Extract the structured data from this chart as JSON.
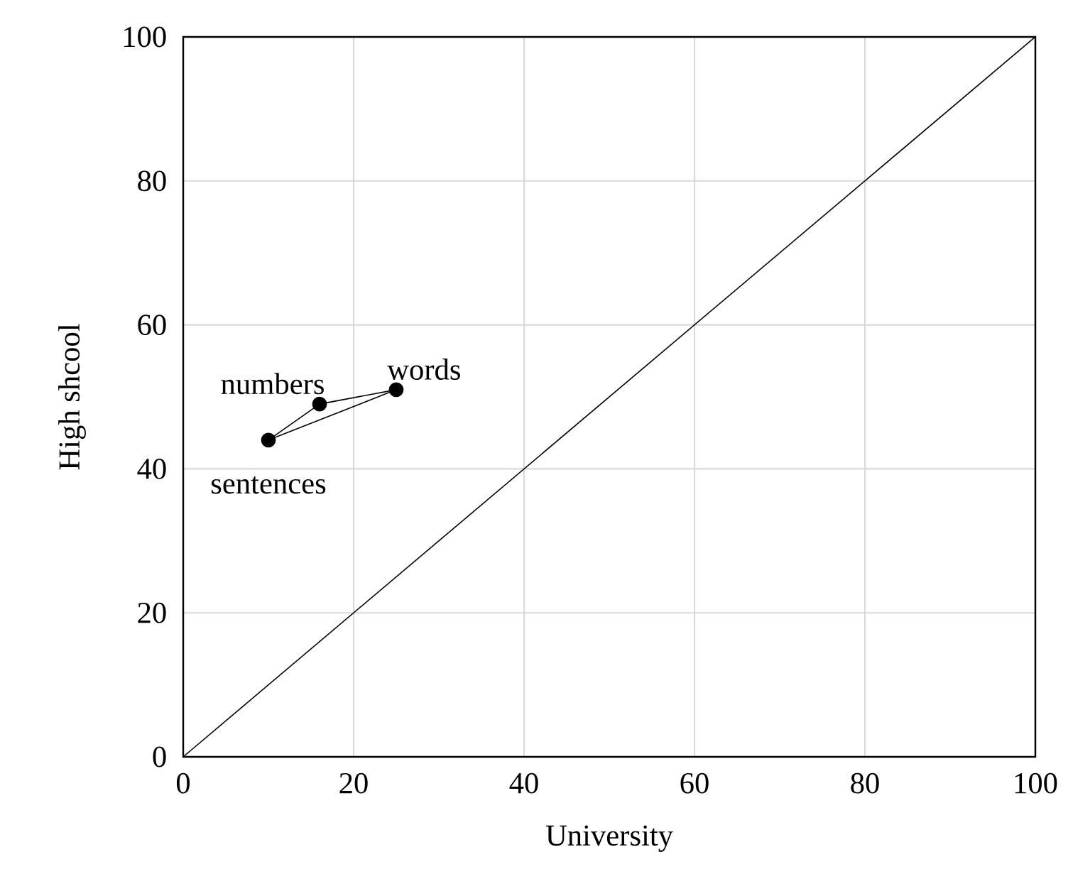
{
  "chart_data": {
    "type": "line",
    "xlabel": "University",
    "ylabel": "High shcool",
    "xlim": [
      0,
      100
    ],
    "ylim": [
      0,
      100
    ],
    "xticks": [
      0,
      20,
      40,
      60,
      80,
      100
    ],
    "yticks": [
      0,
      20,
      40,
      60,
      80,
      100
    ],
    "grid": true,
    "series": [
      {
        "x": [
          10,
          16,
          25
        ],
        "values": [
          44,
          49,
          51
        ],
        "color": "#000000",
        "marker": "circle"
      },
      {
        "x": [
          10,
          25
        ],
        "values": [
          44,
          51
        ],
        "color": "#000000",
        "marker": "none"
      },
      {
        "x": [
          0,
          100
        ],
        "values": [
          0,
          100
        ],
        "color": "#000000",
        "marker": "none"
      }
    ],
    "annotations": [
      {
        "text": "sentences",
        "x": 10,
        "y": 44
      },
      {
        "text": "numbers",
        "x": 16,
        "y": 49
      },
      {
        "text": "words",
        "x": 25,
        "y": 51
      }
    ]
  }
}
